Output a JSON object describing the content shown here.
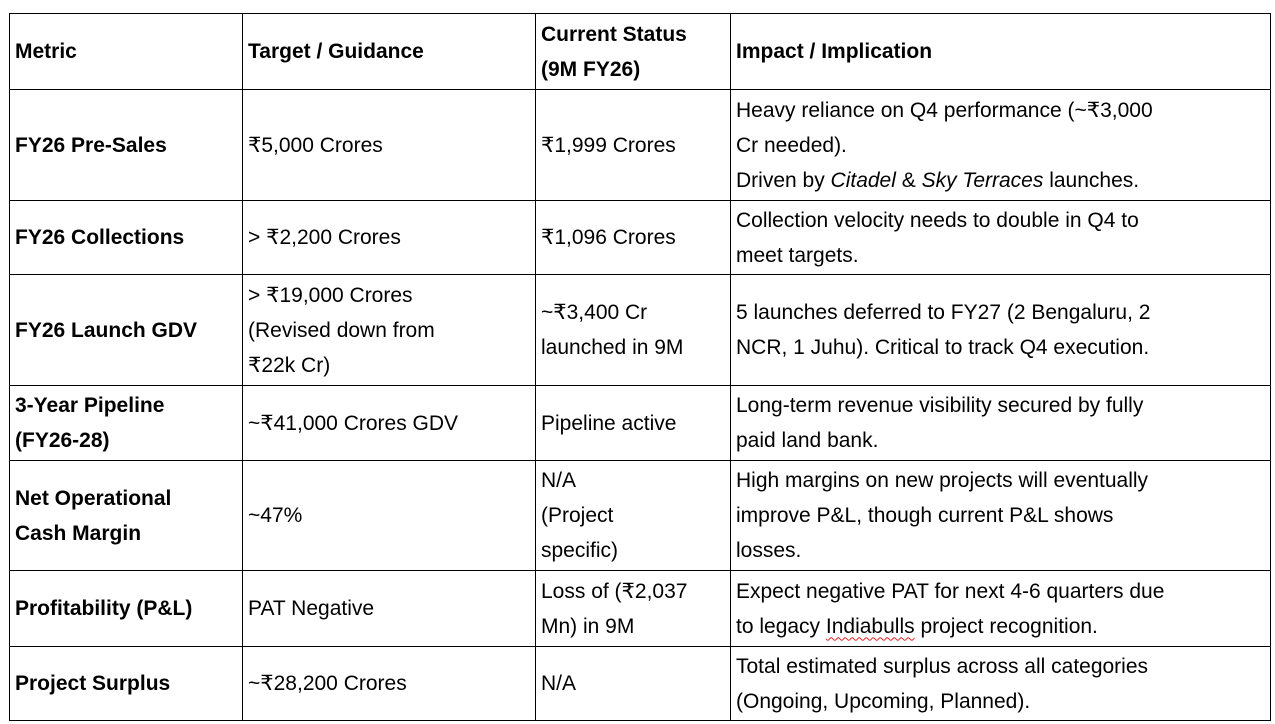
{
  "headers": [
    "Metric",
    "Target / Guidance",
    [
      "Current Status",
      "(9M FY26)"
    ],
    "Impact / Implication"
  ],
  "rows": [
    {
      "metric": [
        "FY26 Pre-Sales"
      ],
      "target": [
        "₹5,000 Crores"
      ],
      "status": [
        "₹1,999 Crores"
      ],
      "impact": [
        "Heavy reliance on Q4 performance (~₹3,000",
        "Cr needed).",
        [
          {
            "t": "Driven by "
          },
          {
            "t": "Citadel",
            "i": true
          },
          {
            "t": " & "
          },
          {
            "t": "Sky Terraces",
            "i": true
          },
          {
            "t": " launches."
          }
        ]
      ]
    },
    {
      "metric": [
        "FY26 Collections"
      ],
      "target": [
        "> ₹2,200 Crores"
      ],
      "status": [
        "₹1,096 Crores"
      ],
      "impact": [
        "Collection velocity needs to double in Q4 to",
        "meet targets."
      ]
    },
    {
      "metric": [
        "FY26 Launch GDV"
      ],
      "target": [
        "> ₹19,000 Crores",
        "(Revised down from",
        "₹22k Cr)"
      ],
      "status": [
        "~₹3,400 Cr",
        "launched in 9M"
      ],
      "impact": [
        "5 launches deferred to FY27 (2 Bengaluru, 2",
        "NCR, 1 Juhu). Critical to track Q4 execution."
      ]
    },
    {
      "metric": [
        "3-Year Pipeline",
        "(FY26-28)"
      ],
      "target": [
        "~₹41,000 Crores GDV"
      ],
      "status": [
        "Pipeline active"
      ],
      "impact": [
        "Long-term revenue visibility secured by fully",
        "paid land bank."
      ]
    },
    {
      "metric": [
        "Net Operational",
        "Cash Margin"
      ],
      "target": [
        "~47%"
      ],
      "status": [
        "N/A",
        "(Project",
        "specific)"
      ],
      "impact": [
        "High margins on new projects will eventually",
        "improve P&L, though current P&L shows",
        "losses."
      ]
    },
    {
      "metric": [
        "Profitability (P&L)"
      ],
      "target": [
        "PAT Negative"
      ],
      "status": [
        "Loss of (₹2,037",
        "Mn) in 9M"
      ],
      "impact": [
        "Expect negative PAT for next 4-6 quarters due",
        [
          {
            "t": "to legacy "
          },
          {
            "t": "Indiabulls",
            "s": true
          },
          {
            "t": " project recognition."
          }
        ]
      ]
    },
    {
      "metric": [
        "Project Surplus"
      ],
      "target": [
        "~₹28,200 Crores"
      ],
      "status": [
        "N/A"
      ],
      "impact": [
        "Total estimated surplus across all categories",
        "(Ongoing, Upcoming, Planned)."
      ]
    }
  ]
}
